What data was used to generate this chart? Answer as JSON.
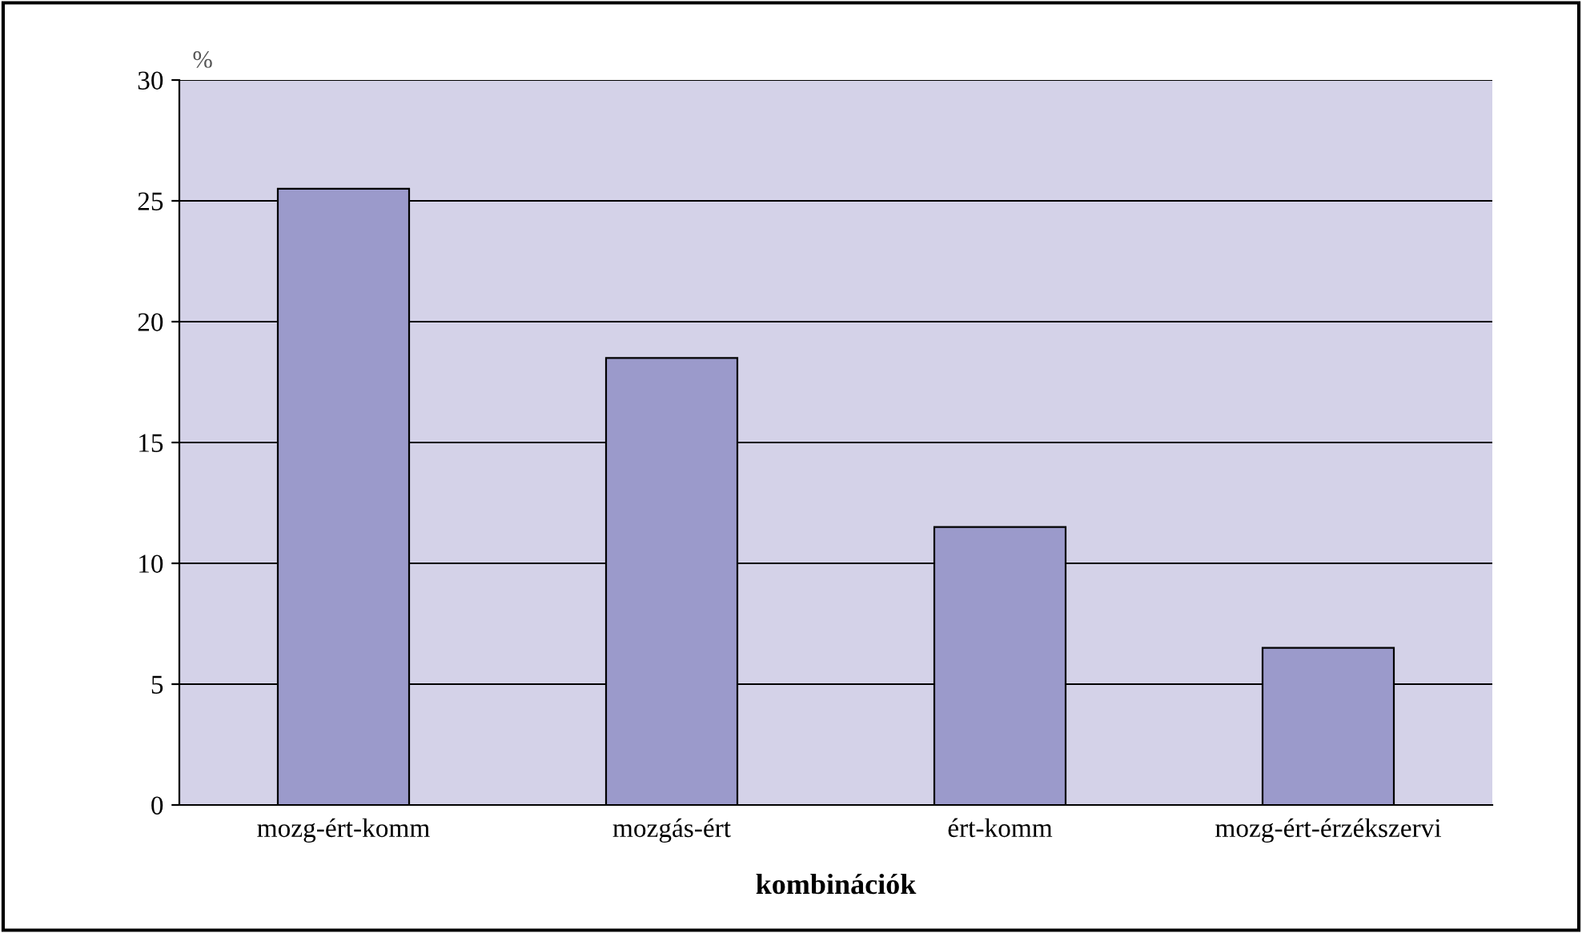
{
  "chart_data": {
    "type": "bar",
    "xlabel": "kombinációk",
    "ylabel": "%",
    "categories": [
      "mozg-ért-komm",
      "mozgás-ért",
      "ért-komm",
      "mozg-ért-érzékszervi"
    ],
    "values": [
      25.5,
      18.5,
      11.5,
      6.5
    ],
    "color": "#9b9acb",
    "ylim": [
      0,
      30
    ],
    "yticks": [
      0,
      5,
      10,
      15,
      20,
      25,
      30
    ],
    "grid": "y",
    "legend": false
  }
}
